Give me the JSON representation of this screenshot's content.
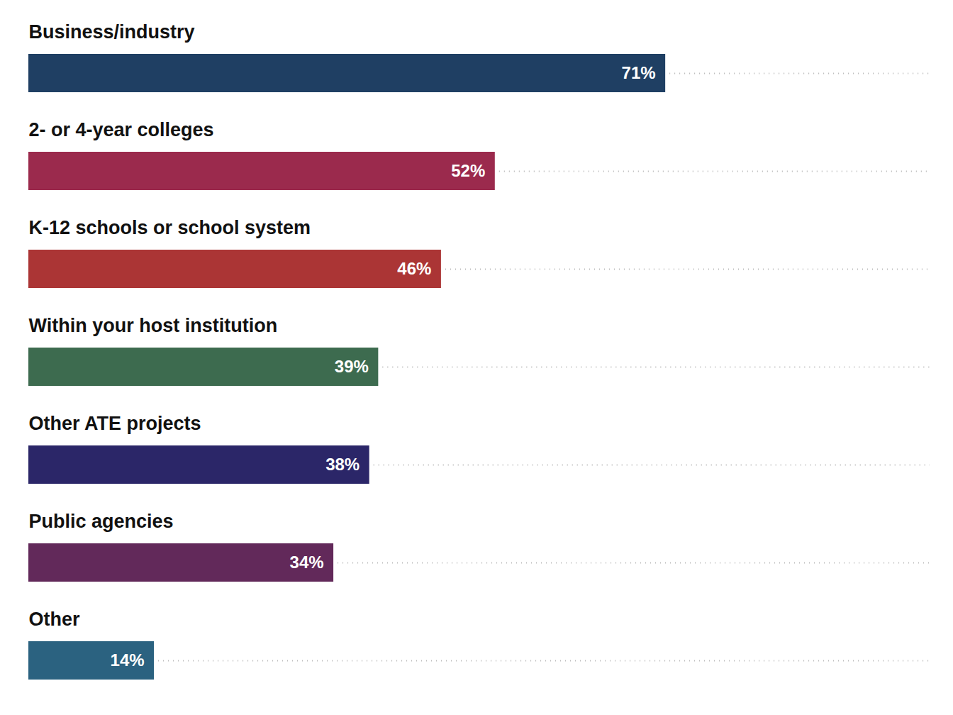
{
  "chart_data": {
    "type": "bar",
    "orientation": "horizontal",
    "categories": [
      "Business/industry",
      "2- or 4-year colleges",
      "K-12 schools or school system",
      "Within your host institution",
      "Other ATE projects",
      "Public agencies",
      "Other"
    ],
    "values": [
      71,
      52,
      46,
      39,
      38,
      34,
      14
    ],
    "value_labels": [
      "71%",
      "52%",
      "46%",
      "39%",
      "38%",
      "34%",
      "14%"
    ],
    "colors": [
      "#1f3f63",
      "#9b2a4d",
      "#ab3535",
      "#3d6b4f",
      "#2b2668",
      "#62295a",
      "#2b6280"
    ],
    "xlim": [
      0,
      100
    ],
    "data_labels": true,
    "tick_labels": false,
    "grid": false
  }
}
